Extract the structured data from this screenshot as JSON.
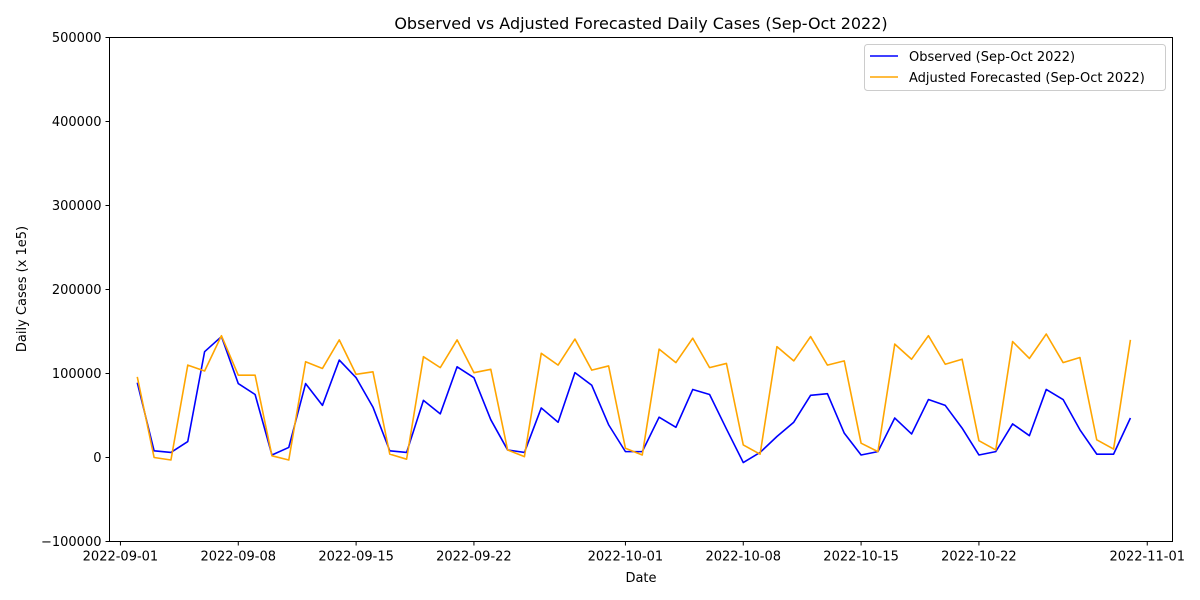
{
  "chart_data": {
    "type": "line",
    "title": "Observed vs Adjusted Forecasted Daily Cases (Sep-Oct 2022)",
    "xlabel": "Date",
    "ylabel": "Daily Cases (x 1e5)",
    "xlim": [
      "2022-08-31",
      "2022-11-03"
    ],
    "ylim": [
      -100000,
      500000
    ],
    "x_ticks": [
      "2022-09-01",
      "2022-09-08",
      "2022-09-15",
      "2022-09-22",
      "2022-10-01",
      "2022-10-08",
      "2022-10-15",
      "2022-10-22",
      "2022-11-01"
    ],
    "y_ticks": [
      -100000,
      0,
      100000,
      200000,
      300000,
      400000,
      500000
    ],
    "y_tick_labels": [
      "−100000",
      "0",
      "100000",
      "200000",
      "300000",
      "400000",
      "500000"
    ],
    "grid": false,
    "legend_position": "top-right",
    "x": [
      "2022-09-02",
      "2022-09-03",
      "2022-09-04",
      "2022-09-05",
      "2022-09-06",
      "2022-09-07",
      "2022-09-08",
      "2022-09-09",
      "2022-09-10",
      "2022-09-11",
      "2022-09-12",
      "2022-09-13",
      "2022-09-14",
      "2022-09-15",
      "2022-09-16",
      "2022-09-17",
      "2022-09-18",
      "2022-09-19",
      "2022-09-20",
      "2022-09-21",
      "2022-09-22",
      "2022-09-23",
      "2022-09-24",
      "2022-09-25",
      "2022-09-26",
      "2022-09-27",
      "2022-09-28",
      "2022-09-29",
      "2022-09-30",
      "2022-10-01",
      "2022-10-02",
      "2022-10-03",
      "2022-10-04",
      "2022-10-05",
      "2022-10-06",
      "2022-10-07",
      "2022-10-08",
      "2022-10-09",
      "2022-10-10",
      "2022-10-11",
      "2022-10-12",
      "2022-10-13",
      "2022-10-14",
      "2022-10-15",
      "2022-10-16",
      "2022-10-17",
      "2022-10-18",
      "2022-10-19",
      "2022-10-20",
      "2022-10-21",
      "2022-10-22",
      "2022-10-23",
      "2022-10-24",
      "2022-10-25",
      "2022-10-26",
      "2022-10-27",
      "2022-10-28",
      "2022-10-29",
      "2022-10-30",
      "2022-10-31"
    ],
    "series": [
      {
        "name": "Observed (Sep-Oct 2022)",
        "color": "#0000ff",
        "values": [
          89000,
          8000,
          6000,
          19000,
          126000,
          144000,
          88000,
          75000,
          3000,
          12000,
          88000,
          62000,
          116000,
          95000,
          60000,
          8000,
          6000,
          68000,
          52000,
          108000,
          95000,
          45000,
          9000,
          6000,
          59000,
          42000,
          101000,
          86000,
          39000,
          7000,
          7000,
          48000,
          36000,
          81000,
          75000,
          34000,
          -6000,
          6000,
          25000,
          42000,
          74000,
          76000,
          29000,
          3000,
          7000,
          47000,
          28000,
          69000,
          62000,
          35000,
          3000,
          7000,
          40000,
          26000,
          81000,
          69000,
          33000,
          4000,
          4000,
          47000
        ]
      },
      {
        "name": "Adjusted Forecasted (Sep-Oct 2022)",
        "color": "#ffa500",
        "values": [
          96000,
          0,
          -3000,
          110000,
          103000,
          145000,
          98000,
          98000,
          2000,
          -3000,
          114000,
          106000,
          140000,
          99000,
          102000,
          4000,
          -2000,
          120000,
          107000,
          140000,
          101000,
          105000,
          9000,
          1000,
          124000,
          110000,
          141000,
          104000,
          109000,
          11000,
          3000,
          129000,
          113000,
          142000,
          107000,
          112000,
          15000,
          4000,
          132000,
          115000,
          144000,
          110000,
          115000,
          17000,
          7000,
          135000,
          117000,
          145000,
          111000,
          117000,
          20000,
          9000,
          138000,
          118000,
          147000,
          113000,
          119000,
          21000,
          10000,
          140000
        ]
      }
    ]
  }
}
